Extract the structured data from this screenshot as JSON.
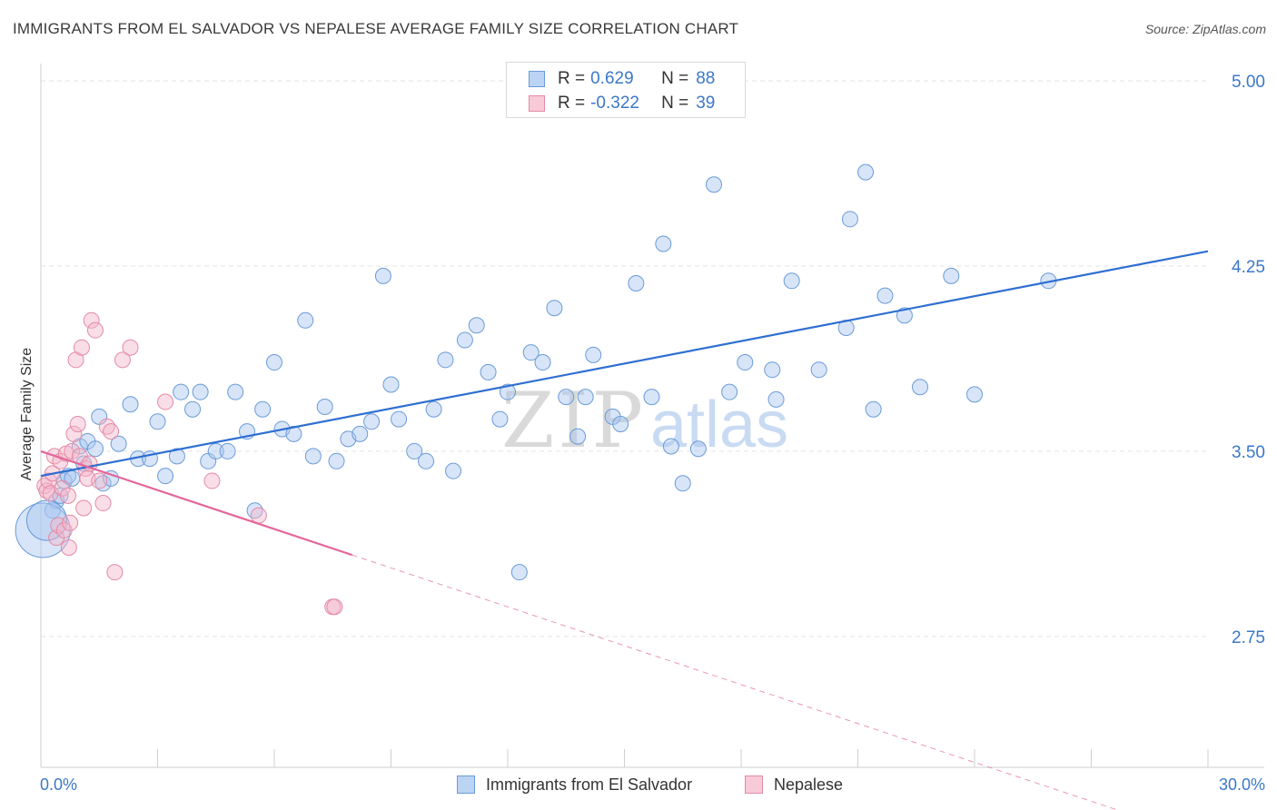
{
  "title": "IMMIGRANTS FROM EL SALVADOR VS NEPALESE AVERAGE FAMILY SIZE CORRELATION CHART",
  "source": "Source: ZipAtlas.com",
  "watermark": {
    "zip": "ZIP",
    "atlas": "atlas"
  },
  "legend_top": {
    "rows": [
      {
        "r_label": "R =",
        "r_value": "0.629",
        "n_label": "N =",
        "n_value": "88",
        "color": "#a9c6ef"
      },
      {
        "r_label": "R =",
        "r_value": "-0.322",
        "n_label": "N =",
        "n_value": "39",
        "color": "#f5b6c9"
      }
    ]
  },
  "chart_data": {
    "type": "scatter",
    "title": "IMMIGRANTS FROM EL SALVADOR VS NEPALESE AVERAGE FAMILY SIZE CORRELATION CHART",
    "xlabel": "",
    "ylabel": "Average Family Size",
    "xlim": [
      0,
      30
    ],
    "ylim": [
      2.22,
      5.07
    ],
    "x_tick_labels": [
      "0.0%",
      "30.0%"
    ],
    "y_ticks": [
      2.75,
      3.5,
      4.25,
      5.0
    ],
    "y_tick_labels": [
      "2.75",
      "3.50",
      "4.25",
      "5.00"
    ],
    "grid": true,
    "legend_position": "bottom",
    "series": [
      {
        "name": "Immigrants from El Salvador",
        "color": "#a9c6ef",
        "edge": "#6a9bd8",
        "trend": {
          "x": [
            0.0,
            30.0
          ],
          "y": [
            3.4,
            4.31
          ],
          "color": "#2f6fd1"
        },
        "points": [
          [
            0.3,
            3.26
          ],
          [
            0.4,
            3.3
          ],
          [
            0.5,
            3.32
          ],
          [
            0.6,
            3.38
          ],
          [
            0.7,
            3.4
          ],
          [
            0.8,
            3.39
          ],
          [
            1.0,
            3.52
          ],
          [
            1.1,
            3.45
          ],
          [
            1.2,
            3.54
          ],
          [
            1.4,
            3.51
          ],
          [
            1.5,
            3.64
          ],
          [
            1.6,
            3.37
          ],
          [
            1.8,
            3.39
          ],
          [
            2.0,
            3.53
          ],
          [
            2.3,
            3.69
          ],
          [
            2.5,
            3.47
          ],
          [
            2.8,
            3.47
          ],
          [
            3.0,
            3.62
          ],
          [
            3.2,
            3.4
          ],
          [
            3.5,
            3.48
          ],
          [
            3.6,
            3.74
          ],
          [
            3.9,
            3.67
          ],
          [
            4.1,
            3.74
          ],
          [
            4.3,
            3.46
          ],
          [
            4.5,
            3.5
          ],
          [
            4.8,
            3.5
          ],
          [
            5.0,
            3.74
          ],
          [
            5.3,
            3.58
          ],
          [
            5.5,
            3.26
          ],
          [
            5.7,
            3.67
          ],
          [
            6.0,
            3.86
          ],
          [
            6.2,
            3.59
          ],
          [
            6.5,
            3.57
          ],
          [
            6.8,
            4.03
          ],
          [
            7.0,
            3.48
          ],
          [
            7.3,
            3.68
          ],
          [
            7.6,
            3.46
          ],
          [
            7.9,
            3.55
          ],
          [
            8.2,
            3.57
          ],
          [
            8.5,
            3.62
          ],
          [
            8.8,
            4.21
          ],
          [
            9.0,
            3.77
          ],
          [
            9.2,
            3.63
          ],
          [
            9.6,
            3.5
          ],
          [
            9.9,
            3.46
          ],
          [
            10.1,
            3.67
          ],
          [
            10.4,
            3.87
          ],
          [
            10.6,
            3.42
          ],
          [
            10.9,
            3.95
          ],
          [
            11.2,
            4.01
          ],
          [
            11.5,
            3.82
          ],
          [
            11.8,
            3.63
          ],
          [
            12.0,
            3.74
          ],
          [
            12.3,
            3.01
          ],
          [
            12.6,
            3.9
          ],
          [
            12.9,
            3.86
          ],
          [
            13.2,
            4.08
          ],
          [
            13.5,
            3.72
          ],
          [
            13.8,
            3.56
          ],
          [
            14.0,
            3.72
          ],
          [
            14.2,
            3.89
          ],
          [
            14.7,
            3.64
          ],
          [
            14.9,
            3.61
          ],
          [
            15.3,
            4.18
          ],
          [
            15.7,
            3.72
          ],
          [
            16.0,
            4.34
          ],
          [
            16.2,
            3.52
          ],
          [
            16.5,
            3.37
          ],
          [
            16.9,
            3.51
          ],
          [
            17.3,
            4.58
          ],
          [
            17.7,
            3.74
          ],
          [
            18.1,
            3.86
          ],
          [
            18.8,
            3.83
          ],
          [
            18.9,
            3.71
          ],
          [
            19.3,
            4.19
          ],
          [
            20.0,
            3.83
          ],
          [
            20.7,
            4.0
          ],
          [
            20.8,
            4.44
          ],
          [
            21.2,
            4.63
          ],
          [
            21.4,
            3.67
          ],
          [
            21.7,
            4.13
          ],
          [
            22.2,
            4.05
          ],
          [
            22.6,
            3.76
          ],
          [
            23.4,
            4.21
          ],
          [
            24.0,
            3.73
          ],
          [
            25.9,
            4.19
          ],
          [
            0.05,
            3.18
          ],
          [
            0.15,
            3.22
          ]
        ],
        "sizes": {
          "0.05,3.18": 30,
          "0.15,3.22": 22
        }
      },
      {
        "name": "Nepalese",
        "color": "#f5b6c9",
        "edge": "#e38aa6",
        "trend": {
          "x": [
            0.0,
            8.0
          ],
          "y": [
            3.5,
            3.08
          ],
          "color": "#e2679a"
        },
        "trend_extension": {
          "x": [
            8.0,
            28.0
          ],
          "y": [
            3.08,
            2.03
          ]
        },
        "points": [
          [
            0.1,
            3.36
          ],
          [
            0.15,
            3.34
          ],
          [
            0.2,
            3.38
          ],
          [
            0.25,
            3.33
          ],
          [
            0.3,
            3.41
          ],
          [
            0.35,
            3.48
          ],
          [
            0.4,
            3.15
          ],
          [
            0.45,
            3.2
          ],
          [
            0.5,
            3.46
          ],
          [
            0.55,
            3.35
          ],
          [
            0.6,
            3.18
          ],
          [
            0.65,
            3.49
          ],
          [
            0.7,
            3.32
          ],
          [
            0.72,
            3.11
          ],
          [
            0.75,
            3.21
          ],
          [
            0.8,
            3.5
          ],
          [
            0.85,
            3.57
          ],
          [
            0.9,
            3.87
          ],
          [
            0.95,
            3.61
          ],
          [
            1.0,
            3.48
          ],
          [
            1.05,
            3.92
          ],
          [
            1.1,
            3.27
          ],
          [
            1.15,
            3.43
          ],
          [
            1.2,
            3.39
          ],
          [
            1.3,
            4.03
          ],
          [
            1.4,
            3.99
          ],
          [
            1.5,
            3.38
          ],
          [
            1.6,
            3.29
          ],
          [
            1.7,
            3.6
          ],
          [
            1.8,
            3.58
          ],
          [
            1.9,
            3.01
          ],
          [
            2.1,
            3.87
          ],
          [
            2.3,
            3.92
          ],
          [
            3.2,
            3.7
          ],
          [
            4.4,
            3.38
          ],
          [
            5.6,
            3.24
          ],
          [
            7.5,
            2.87
          ],
          [
            7.55,
            2.87
          ],
          [
            1.25,
            3.45
          ]
        ]
      }
    ]
  }
}
